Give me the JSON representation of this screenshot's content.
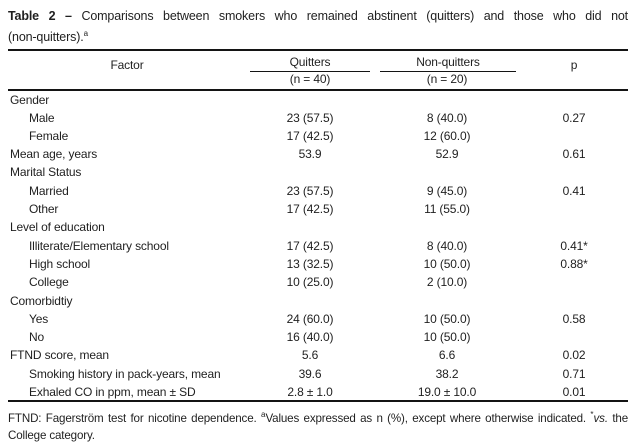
{
  "title": {
    "label": "Table 2",
    "dash": "–",
    "line1_rest": "Comparisons between smokers who remained abstinent (quitters) and those who did not",
    "line2": "(non-quitters).",
    "superscript": "a"
  },
  "table": {
    "header": {
      "factor": "Factor",
      "quitters": "Quitters",
      "quitters_n": "(n = 40)",
      "nonquitters": "Non-quitters",
      "nonquitters_n": "(n = 20)",
      "p": "p"
    },
    "rows": [
      {
        "factor": "Gender",
        "indent": false,
        "quitters": "",
        "nonquitters": "",
        "p": ""
      },
      {
        "factor": "Male",
        "indent": true,
        "quitters": "23 (57.5)",
        "nonquitters": "8 (40.0)",
        "p": "0.27"
      },
      {
        "factor": "Female",
        "indent": true,
        "quitters": "17 (42.5)",
        "nonquitters": "12 (60.0)",
        "p": ""
      },
      {
        "factor": "Mean age, years",
        "indent": false,
        "quitters": "53.9",
        "nonquitters": "52.9",
        "p": "0.61"
      },
      {
        "factor": "Marital Status",
        "indent": false,
        "quitters": "",
        "nonquitters": "",
        "p": ""
      },
      {
        "factor": "Married",
        "indent": true,
        "quitters": "23 (57.5)",
        "nonquitters": "9 (45.0)",
        "p": "0.41"
      },
      {
        "factor": "Other",
        "indent": true,
        "quitters": "17 (42.5)",
        "nonquitters": "11 (55.0)",
        "p": ""
      },
      {
        "factor": "Level of education",
        "indent": false,
        "quitters": "",
        "nonquitters": "",
        "p": ""
      },
      {
        "factor": "Illiterate/Elementary school",
        "indent": true,
        "quitters": "17 (42.5)",
        "nonquitters": "8 (40.0)",
        "p": "0.41*"
      },
      {
        "factor": "High school",
        "indent": true,
        "quitters": "13 (32.5)",
        "nonquitters": "10 (50.0)",
        "p": "0.88*"
      },
      {
        "factor": "College",
        "indent": true,
        "quitters": "10 (25.0)",
        "nonquitters": "2 (10.0)",
        "p": ""
      },
      {
        "factor": "Comorbidtiy",
        "indent": false,
        "quitters": "",
        "nonquitters": "",
        "p": ""
      },
      {
        "factor": "Yes",
        "indent": true,
        "quitters": "24 (60.0)",
        "nonquitters": "10 (50.0)",
        "p": "0.58"
      },
      {
        "factor": "No",
        "indent": true,
        "quitters": "16 (40.0)",
        "nonquitters": "10 (50.0)",
        "p": ""
      },
      {
        "factor": "FTND score, mean",
        "indent": false,
        "quitters": "5.6",
        "nonquitters": "6.6",
        "p": "0.02"
      },
      {
        "factor": "Smoking history in pack-years, mean",
        "indent": true,
        "quitters": "39.6",
        "nonquitters": "38.2",
        "p": "0.71"
      },
      {
        "factor": "Exhaled CO in ppm, mean ± SD",
        "indent": true,
        "quitters": "2.8 ± 1.0",
        "nonquitters": "19.0 ± 10.0",
        "p": "0.01"
      }
    ]
  },
  "footnote": {
    "line1_part1": "FTND: Fagerström test for nicotine dependence. ",
    "line1_sup1": "a",
    "line1_part2": "Values expressed as n (%), except where otherwise indicated. ",
    "line1_sup2": "*",
    "line1_italic": "vs.",
    "line1_part3": " the",
    "line2": "College category."
  },
  "colors": {
    "text": "#1f1f1f",
    "rule": "#141414",
    "background": "#ffffff"
  }
}
